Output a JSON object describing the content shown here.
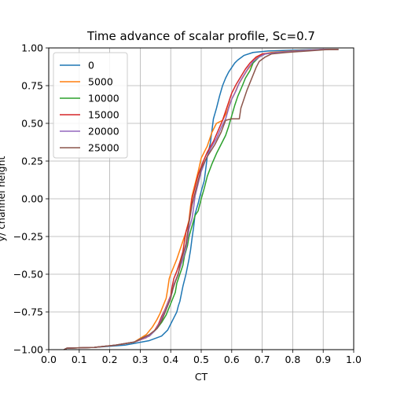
{
  "chart_data": {
    "type": "line",
    "title": "Time advance of scalar profile, Sc=0.7",
    "xlabel": "CT",
    "ylabel": "y/ channel height",
    "xlim": [
      0.0,
      1.0
    ],
    "ylim": [
      -1.0,
      1.0
    ],
    "xticks": [
      "0.0",
      "0.1",
      "0.2",
      "0.3",
      "0.4",
      "0.5",
      "0.6",
      "0.7",
      "0.8",
      "0.9",
      "1.0"
    ],
    "yticks": [
      "1.00",
      "0.75",
      "0.50",
      "0.25",
      "0.00",
      "−0.25",
      "−0.50",
      "−0.75",
      "−1.00"
    ],
    "grid": true,
    "legend_position": "upper-left",
    "series": [
      {
        "name": "0",
        "color": "#1f77b4",
        "points": [
          [
            0.05,
            -1.0
          ],
          [
            0.06,
            -0.99
          ],
          [
            0.15,
            -0.985
          ],
          [
            0.25,
            -0.97
          ],
          [
            0.33,
            -0.94
          ],
          [
            0.37,
            -0.91
          ],
          [
            0.39,
            -0.87
          ],
          [
            0.4,
            -0.83
          ],
          [
            0.41,
            -0.79
          ],
          [
            0.42,
            -0.75
          ],
          [
            0.425,
            -0.71
          ],
          [
            0.43,
            -0.68
          ],
          [
            0.435,
            -0.63
          ],
          [
            0.44,
            -0.58
          ],
          [
            0.445,
            -0.54
          ],
          [
            0.45,
            -0.5
          ],
          [
            0.455,
            -0.45
          ],
          [
            0.46,
            -0.4
          ],
          [
            0.465,
            -0.34
          ],
          [
            0.47,
            -0.26
          ],
          [
            0.475,
            -0.19
          ],
          [
            0.48,
            -0.1
          ],
          [
            0.49,
            -0.03
          ],
          [
            0.5,
            0.05
          ],
          [
            0.51,
            0.12
          ],
          [
            0.515,
            0.2
          ],
          [
            0.52,
            0.28
          ],
          [
            0.53,
            0.37
          ],
          [
            0.535,
            0.45
          ],
          [
            0.54,
            0.53
          ],
          [
            0.55,
            0.6
          ],
          [
            0.56,
            0.68
          ],
          [
            0.57,
            0.75
          ],
          [
            0.58,
            0.8
          ],
          [
            0.59,
            0.84
          ],
          [
            0.6,
            0.87
          ],
          [
            0.61,
            0.9
          ],
          [
            0.62,
            0.92
          ],
          [
            0.64,
            0.95
          ],
          [
            0.67,
            0.97
          ],
          [
            0.72,
            0.98
          ],
          [
            0.8,
            0.985
          ],
          [
            0.9,
            0.99
          ],
          [
            0.95,
            0.99
          ]
        ]
      },
      {
        "name": "5000",
        "color": "#ff7f0e",
        "points": [
          [
            0.05,
            -1.0
          ],
          [
            0.06,
            -0.99
          ],
          [
            0.15,
            -0.985
          ],
          [
            0.22,
            -0.97
          ],
          [
            0.28,
            -0.95
          ],
          [
            0.32,
            -0.9
          ],
          [
            0.34,
            -0.85
          ],
          [
            0.355,
            -0.8
          ],
          [
            0.365,
            -0.76
          ],
          [
            0.375,
            -0.71
          ],
          [
            0.385,
            -0.66
          ],
          [
            0.39,
            -0.6
          ],
          [
            0.395,
            -0.53
          ],
          [
            0.4,
            -0.5
          ],
          [
            0.41,
            -0.45
          ],
          [
            0.42,
            -0.4
          ],
          [
            0.43,
            -0.34
          ],
          [
            0.44,
            -0.28
          ],
          [
            0.45,
            -0.22
          ],
          [
            0.46,
            -0.14
          ],
          [
            0.465,
            -0.05
          ],
          [
            0.47,
            0.02
          ],
          [
            0.48,
            0.1
          ],
          [
            0.49,
            0.18
          ],
          [
            0.5,
            0.27
          ],
          [
            0.52,
            0.35
          ],
          [
            0.535,
            0.44
          ],
          [
            0.55,
            0.5
          ],
          [
            0.57,
            0.52
          ],
          [
            0.585,
            0.58
          ],
          [
            0.595,
            0.64
          ],
          [
            0.61,
            0.7
          ],
          [
            0.62,
            0.75
          ],
          [
            0.635,
            0.8
          ],
          [
            0.65,
            0.85
          ],
          [
            0.665,
            0.89
          ],
          [
            0.68,
            0.93
          ],
          [
            0.7,
            0.96
          ],
          [
            0.73,
            0.97
          ],
          [
            0.8,
            0.98
          ],
          [
            0.9,
            0.99
          ],
          [
            0.95,
            0.99
          ]
        ]
      },
      {
        "name": "10000",
        "color": "#2ca02c",
        "points": [
          [
            0.05,
            -1.0
          ],
          [
            0.06,
            -0.99
          ],
          [
            0.15,
            -0.985
          ],
          [
            0.22,
            -0.97
          ],
          [
            0.28,
            -0.95
          ],
          [
            0.33,
            -0.91
          ],
          [
            0.355,
            -0.86
          ],
          [
            0.37,
            -0.82
          ],
          [
            0.385,
            -0.77
          ],
          [
            0.395,
            -0.72
          ],
          [
            0.405,
            -0.67
          ],
          [
            0.415,
            -0.62
          ],
          [
            0.42,
            -0.56
          ],
          [
            0.43,
            -0.5
          ],
          [
            0.44,
            -0.44
          ],
          [
            0.445,
            -0.38
          ],
          [
            0.455,
            -0.31
          ],
          [
            0.46,
            -0.25
          ],
          [
            0.47,
            -0.18
          ],
          [
            0.48,
            -0.11
          ],
          [
            0.49,
            -0.08
          ],
          [
            0.5,
            0.0
          ],
          [
            0.51,
            0.07
          ],
          [
            0.52,
            0.15
          ],
          [
            0.535,
            0.23
          ],
          [
            0.55,
            0.3
          ],
          [
            0.565,
            0.36
          ],
          [
            0.58,
            0.42
          ],
          [
            0.59,
            0.48
          ],
          [
            0.6,
            0.55
          ],
          [
            0.61,
            0.62
          ],
          [
            0.62,
            0.68
          ],
          [
            0.635,
            0.75
          ],
          [
            0.645,
            0.8
          ],
          [
            0.66,
            0.85
          ],
          [
            0.67,
            0.9
          ],
          [
            0.69,
            0.94
          ],
          [
            0.71,
            0.96
          ],
          [
            0.75,
            0.97
          ],
          [
            0.82,
            0.98
          ],
          [
            0.9,
            0.99
          ],
          [
            0.95,
            0.99
          ]
        ]
      },
      {
        "name": "15000",
        "color": "#d62728",
        "points": [
          [
            0.05,
            -1.0
          ],
          [
            0.06,
            -0.99
          ],
          [
            0.15,
            -0.985
          ],
          [
            0.22,
            -0.97
          ],
          [
            0.28,
            -0.95
          ],
          [
            0.32,
            -0.92
          ],
          [
            0.345,
            -0.88
          ],
          [
            0.36,
            -0.83
          ],
          [
            0.37,
            -0.78
          ],
          [
            0.38,
            -0.74
          ],
          [
            0.39,
            -0.69
          ],
          [
            0.4,
            -0.64
          ],
          [
            0.405,
            -0.58
          ],
          [
            0.41,
            -0.53
          ],
          [
            0.42,
            -0.48
          ],
          [
            0.43,
            -0.42
          ],
          [
            0.44,
            -0.35
          ],
          [
            0.445,
            -0.28
          ],
          [
            0.45,
            -0.22
          ],
          [
            0.46,
            -0.15
          ],
          [
            0.465,
            -0.08
          ],
          [
            0.47,
            0.0
          ],
          [
            0.48,
            0.08
          ],
          [
            0.49,
            0.16
          ],
          [
            0.505,
            0.24
          ],
          [
            0.52,
            0.31
          ],
          [
            0.54,
            0.38
          ],
          [
            0.555,
            0.45
          ],
          [
            0.57,
            0.52
          ],
          [
            0.58,
            0.58
          ],
          [
            0.59,
            0.64
          ],
          [
            0.6,
            0.7
          ],
          [
            0.615,
            0.76
          ],
          [
            0.63,
            0.81
          ],
          [
            0.645,
            0.86
          ],
          [
            0.66,
            0.9
          ],
          [
            0.68,
            0.94
          ],
          [
            0.7,
            0.96
          ],
          [
            0.75,
            0.97
          ],
          [
            0.82,
            0.98
          ],
          [
            0.9,
            0.99
          ],
          [
            0.95,
            0.99
          ]
        ]
      },
      {
        "name": "20000",
        "color": "#9467bd",
        "points": [
          [
            0.05,
            -1.0
          ],
          [
            0.06,
            -0.99
          ],
          [
            0.15,
            -0.985
          ],
          [
            0.22,
            -0.97
          ],
          [
            0.28,
            -0.95
          ],
          [
            0.33,
            -0.91
          ],
          [
            0.35,
            -0.87
          ],
          [
            0.365,
            -0.82
          ],
          [
            0.375,
            -0.77
          ],
          [
            0.385,
            -0.72
          ],
          [
            0.395,
            -0.67
          ],
          [
            0.405,
            -0.62
          ],
          [
            0.41,
            -0.57
          ],
          [
            0.42,
            -0.52
          ],
          [
            0.43,
            -0.46
          ],
          [
            0.44,
            -0.4
          ],
          [
            0.45,
            -0.33
          ],
          [
            0.455,
            -0.27
          ],
          [
            0.46,
            -0.2
          ],
          [
            0.47,
            -0.13
          ],
          [
            0.475,
            -0.06
          ],
          [
            0.48,
            0.02
          ],
          [
            0.49,
            0.1
          ],
          [
            0.5,
            0.18
          ],
          [
            0.515,
            0.26
          ],
          [
            0.53,
            0.33
          ],
          [
            0.55,
            0.4
          ],
          [
            0.565,
            0.47
          ],
          [
            0.58,
            0.53
          ],
          [
            0.59,
            0.6
          ],
          [
            0.6,
            0.66
          ],
          [
            0.615,
            0.72
          ],
          [
            0.625,
            0.77
          ],
          [
            0.64,
            0.82
          ],
          [
            0.655,
            0.87
          ],
          [
            0.67,
            0.91
          ],
          [
            0.69,
            0.94
          ],
          [
            0.71,
            0.96
          ],
          [
            0.75,
            0.97
          ],
          [
            0.82,
            0.98
          ],
          [
            0.9,
            0.99
          ],
          [
            0.95,
            0.99
          ]
        ]
      },
      {
        "name": "25000",
        "color": "#8c564b",
        "points": [
          [
            0.05,
            -1.0
          ],
          [
            0.06,
            -0.99
          ],
          [
            0.15,
            -0.985
          ],
          [
            0.22,
            -0.97
          ],
          [
            0.28,
            -0.95
          ],
          [
            0.33,
            -0.9
          ],
          [
            0.355,
            -0.86
          ],
          [
            0.37,
            -0.81
          ],
          [
            0.38,
            -0.76
          ],
          [
            0.39,
            -0.71
          ],
          [
            0.4,
            -0.66
          ],
          [
            0.405,
            -0.61
          ],
          [
            0.415,
            -0.55
          ],
          [
            0.425,
            -0.5
          ],
          [
            0.43,
            -0.44
          ],
          [
            0.44,
            -0.37
          ],
          [
            0.45,
            -0.3
          ],
          [
            0.455,
            -0.23
          ],
          [
            0.46,
            -0.16
          ],
          [
            0.465,
            -0.1
          ],
          [
            0.47,
            -0.04
          ],
          [
            0.48,
            0.04
          ],
          [
            0.49,
            0.12
          ],
          [
            0.5,
            0.2
          ],
          [
            0.52,
            0.28
          ],
          [
            0.545,
            0.36
          ],
          [
            0.565,
            0.44
          ],
          [
            0.58,
            0.52
          ],
          [
            0.6,
            0.53
          ],
          [
            0.625,
            0.53
          ],
          [
            0.63,
            0.6
          ],
          [
            0.64,
            0.66
          ],
          [
            0.65,
            0.72
          ],
          [
            0.66,
            0.77
          ],
          [
            0.67,
            0.82
          ],
          [
            0.68,
            0.87
          ],
          [
            0.69,
            0.91
          ],
          [
            0.71,
            0.94
          ],
          [
            0.73,
            0.96
          ],
          [
            0.78,
            0.97
          ],
          [
            0.85,
            0.98
          ],
          [
            0.92,
            0.99
          ],
          [
            0.95,
            0.99
          ]
        ]
      }
    ]
  }
}
